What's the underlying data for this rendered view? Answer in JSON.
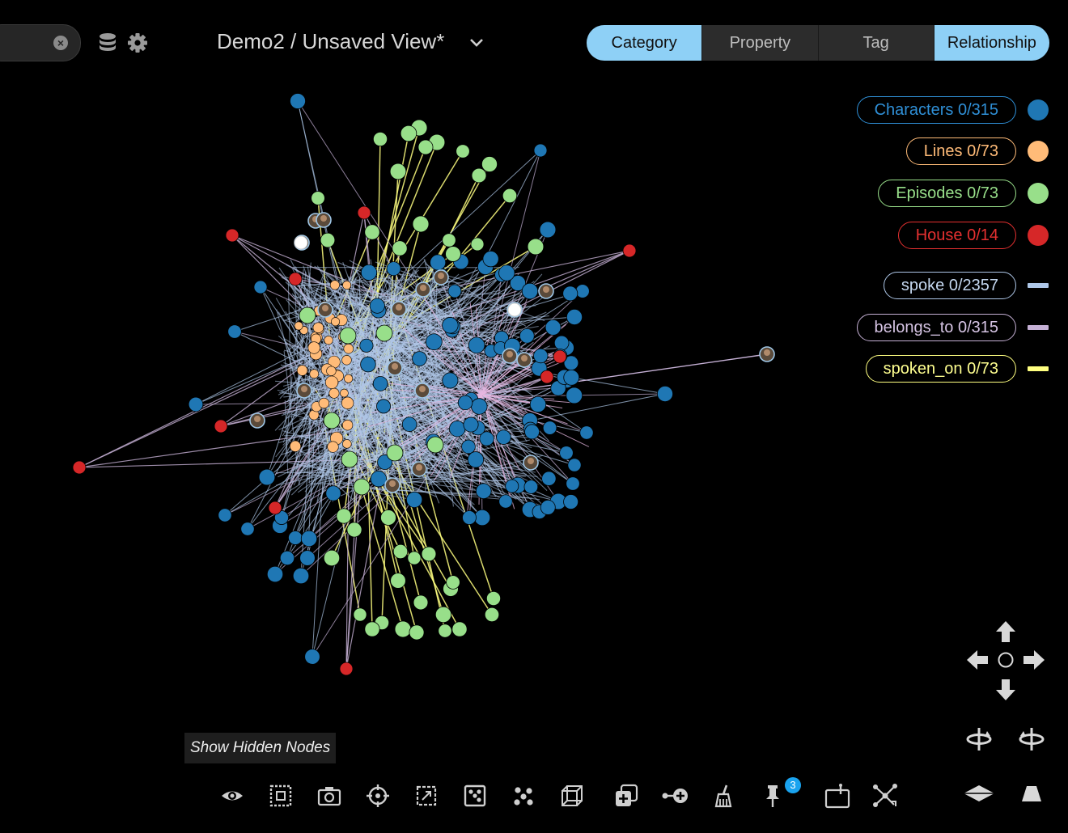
{
  "header": {
    "view_title": "Demo2 / Unsaved View*",
    "icons": [
      "close-circle-icon",
      "database-icon",
      "gear-icon",
      "chevron-down-icon"
    ]
  },
  "mode_tabs": [
    {
      "label": "Category",
      "active": true
    },
    {
      "label": "Property",
      "active": false
    },
    {
      "label": "Tag",
      "active": false
    },
    {
      "label": "Relationship",
      "active": true
    }
  ],
  "legend": {
    "nodes": [
      {
        "label": "Characters 0/315",
        "color": "#1f77b4"
      },
      {
        "label": "Lines 0/73",
        "color": "#ffbb78"
      },
      {
        "label": "Episodes 0/73",
        "color": "#98df8a"
      },
      {
        "label": "House 0/14",
        "color": "#d62728"
      }
    ],
    "edges": [
      {
        "label": "spoke 0/2357",
        "color": "#aec7e8"
      },
      {
        "label": "belongs_to 0/315",
        "color": "#c5b0d5"
      },
      {
        "label": "spoken_on 0/73",
        "color": "#ffff80"
      }
    ]
  },
  "tooltip": "Show Hidden Nodes",
  "toolbar": {
    "tools": [
      "eye-icon",
      "select-box-icon",
      "camera-icon",
      "crosshair-icon",
      "expand-icon",
      "dice-icon",
      "cluster-icon",
      "cube-icon",
      "add-copy-icon",
      "add-node-icon",
      "broom-icon",
      "pin-icon",
      "annotate-icon",
      "layout-icon"
    ],
    "pin_badge": "3"
  },
  "navigation": [
    "arrow-up-icon",
    "arrow-left-icon",
    "center-circle-icon",
    "arrow-right-icon",
    "arrow-down-icon",
    "rotate-left-icon",
    "rotate-right-icon",
    "tilt-down-icon",
    "tilt-up-icon"
  ]
}
